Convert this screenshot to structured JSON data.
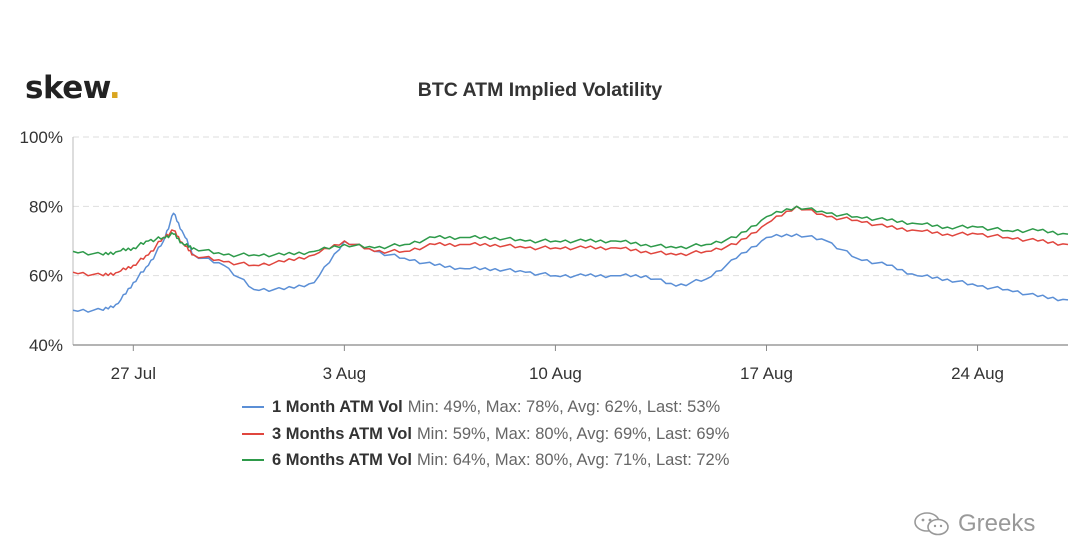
{
  "logo": {
    "text": "skew",
    "dot": ".",
    "dot_color": "#d9a520"
  },
  "watermark": {
    "icon": "wechat-icon",
    "text": "Greeks"
  },
  "chart_data": {
    "type": "line",
    "title": "BTC ATM Implied Volatility",
    "xlabel": "",
    "ylabel": "",
    "ylim": [
      40,
      100
    ],
    "yticks": [
      40,
      60,
      80,
      100
    ],
    "ytick_labels": [
      "40%",
      "60%",
      "80%",
      "100%"
    ],
    "xlim": [
      "2020-07-25",
      "2020-08-27"
    ],
    "xticks": [
      "2020-07-27",
      "2020-08-03",
      "2020-08-10",
      "2020-08-17",
      "2020-08-24"
    ],
    "xtick_labels": [
      "27 Jul",
      "3 Aug",
      "10 Aug",
      "17 Aug",
      "24 Aug"
    ],
    "grid": true,
    "legend_position": "bottom",
    "series": [
      {
        "name": "1 Month ATM Vol",
        "color": "#5b8fd6",
        "stats": "Min: 49%, Max: 78%, Avg: 62%, Last: 53%",
        "x": [
          "2020-07-25",
          "2020-07-26",
          "2020-07-26T12",
          "2020-07-27",
          "2020-07-27T12",
          "2020-07-28",
          "2020-07-28T08",
          "2020-07-28T16",
          "2020-07-29",
          "2020-07-30",
          "2020-07-31",
          "2020-08-01",
          "2020-08-02",
          "2020-08-03",
          "2020-08-04",
          "2020-08-05",
          "2020-08-06",
          "2020-08-07",
          "2020-08-08",
          "2020-08-09",
          "2020-08-10",
          "2020-08-11",
          "2020-08-12",
          "2020-08-13",
          "2020-08-14",
          "2020-08-15",
          "2020-08-16",
          "2020-08-17",
          "2020-08-18",
          "2020-08-19",
          "2020-08-20",
          "2020-08-21",
          "2020-08-22",
          "2020-08-23",
          "2020-08-24",
          "2020-08-25",
          "2020-08-26",
          "2020-08-27"
        ],
        "y": [
          50,
          50,
          52,
          58,
          63,
          70,
          78,
          72,
          66,
          63,
          56,
          56,
          58,
          70,
          67,
          65,
          63,
          62,
          62,
          61,
          60,
          60,
          60,
          60,
          57,
          59,
          65,
          71,
          72,
          70,
          65,
          63,
          60,
          59,
          57,
          56,
          54,
          53
        ]
      },
      {
        "name": "3 Months ATM Vol",
        "color": "#e0463e",
        "stats": "Min: 59%, Max: 80%, Avg: 69%, Last: 69%",
        "x": [
          "2020-07-25",
          "2020-07-26",
          "2020-07-26T12",
          "2020-07-27",
          "2020-07-27T12",
          "2020-07-28",
          "2020-07-28T08",
          "2020-07-28T16",
          "2020-07-29",
          "2020-07-30",
          "2020-07-31",
          "2020-08-01",
          "2020-08-02",
          "2020-08-03",
          "2020-08-04",
          "2020-08-05",
          "2020-08-06",
          "2020-08-07",
          "2020-08-08",
          "2020-08-09",
          "2020-08-10",
          "2020-08-11",
          "2020-08-12",
          "2020-08-13",
          "2020-08-14",
          "2020-08-15",
          "2020-08-16",
          "2020-08-17",
          "2020-08-18",
          "2020-08-19",
          "2020-08-20",
          "2020-08-21",
          "2020-08-22",
          "2020-08-23",
          "2020-08-24",
          "2020-08-25",
          "2020-08-26",
          "2020-08-27"
        ],
        "y": [
          61,
          60,
          61,
          63,
          66,
          71,
          73,
          69,
          66,
          64,
          63,
          64,
          66,
          70,
          67,
          67,
          69,
          69,
          69,
          68,
          68,
          68,
          68,
          67,
          66,
          67,
          69,
          75,
          80,
          77,
          76,
          74,
          73,
          72,
          72,
          71,
          70,
          69
        ]
      },
      {
        "name": "6 Months ATM Vol",
        "color": "#2e9a4a",
        "stats": "Min: 64%, Max: 80%, Avg: 71%, Last: 72%",
        "x": [
          "2020-07-25",
          "2020-07-26",
          "2020-07-26T12",
          "2020-07-27",
          "2020-07-27T12",
          "2020-07-28",
          "2020-07-28T08",
          "2020-07-28T16",
          "2020-07-29",
          "2020-07-30",
          "2020-07-31",
          "2020-08-01",
          "2020-08-02",
          "2020-08-03",
          "2020-08-04",
          "2020-08-05",
          "2020-08-06",
          "2020-08-07",
          "2020-08-08",
          "2020-08-09",
          "2020-08-10",
          "2020-08-11",
          "2020-08-12",
          "2020-08-13",
          "2020-08-14",
          "2020-08-15",
          "2020-08-16",
          "2020-08-17",
          "2020-08-18",
          "2020-08-19",
          "2020-08-20",
          "2020-08-21",
          "2020-08-22",
          "2020-08-23",
          "2020-08-24",
          "2020-08-25",
          "2020-08-26",
          "2020-08-27"
        ],
        "y": [
          67,
          66,
          67,
          68,
          70,
          71,
          72,
          69,
          68,
          66,
          66,
          66,
          67,
          69,
          68,
          69,
          71,
          71,
          71,
          70,
          70,
          70,
          70,
          69,
          68,
          69,
          71,
          77,
          80,
          78,
          77,
          76,
          75,
          74,
          74,
          73,
          73,
          72
        ]
      }
    ]
  }
}
